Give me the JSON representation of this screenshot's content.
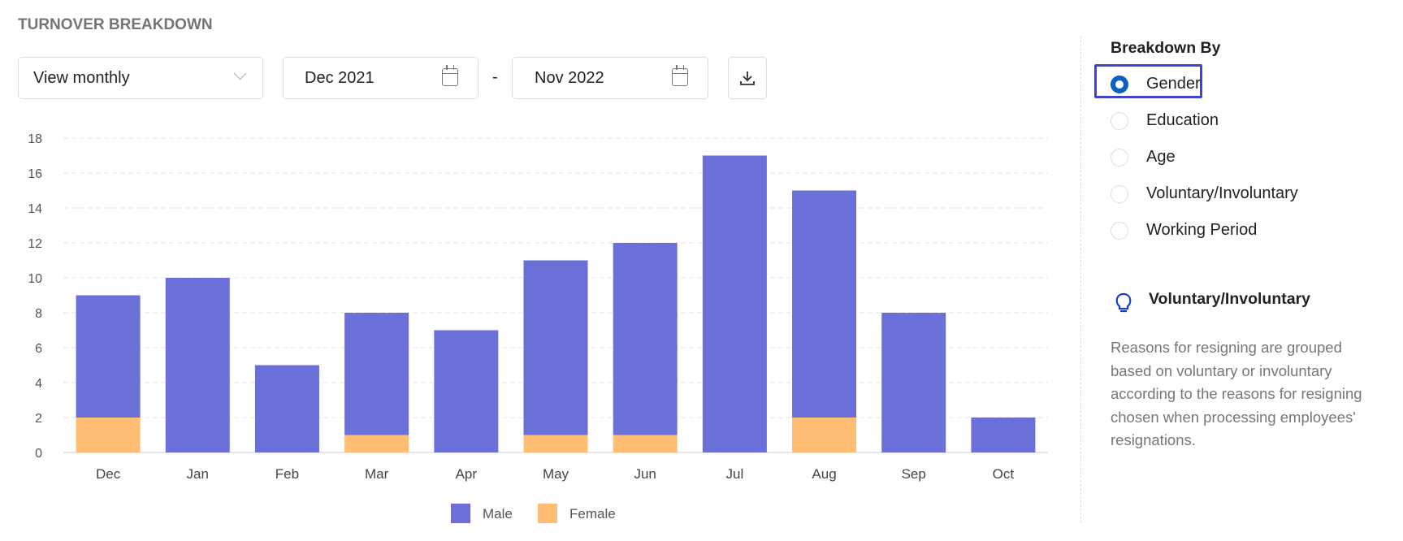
{
  "header": {
    "title": "TURNOVER BREAKDOWN"
  },
  "controls": {
    "view": "View monthly",
    "start_date": "Dec 2021",
    "separator": "-",
    "end_date": "Nov 2022"
  },
  "panel": {
    "heading": "Breakdown By",
    "options": [
      "Gender",
      "Education",
      "Age",
      "Voluntary/Involuntary",
      "Working Period"
    ],
    "selected": "Gender",
    "tip_title": "Voluntary/Involuntary",
    "tip_text": "Reasons for resigning are grouped based on voluntary or involuntary according to the reasons for resigning chosen when processing employees' resignations."
  },
  "chart_data": {
    "type": "bar",
    "stacked": true,
    "title": "",
    "xlabel": "",
    "ylabel": "",
    "ylim": [
      0,
      18
    ],
    "yticks": [
      0,
      2,
      4,
      6,
      8,
      10,
      12,
      14,
      16,
      18
    ],
    "grid": true,
    "legend": "bottom",
    "categories": [
      "Dec",
      "Jan",
      "Feb",
      "Mar",
      "Apr",
      "May",
      "Jun",
      "Jul",
      "Aug",
      "Sep",
      "Oct"
    ],
    "series": [
      {
        "name": "Male",
        "color": "#6b70d9",
        "values": [
          7,
          10,
          5,
          7,
          7,
          10,
          11,
          17,
          13,
          8,
          2
        ]
      },
      {
        "name": "Female",
        "color": "#ffbe73",
        "values": [
          2,
          0,
          0,
          1,
          0,
          1,
          1,
          0,
          2,
          0,
          0
        ]
      }
    ]
  }
}
